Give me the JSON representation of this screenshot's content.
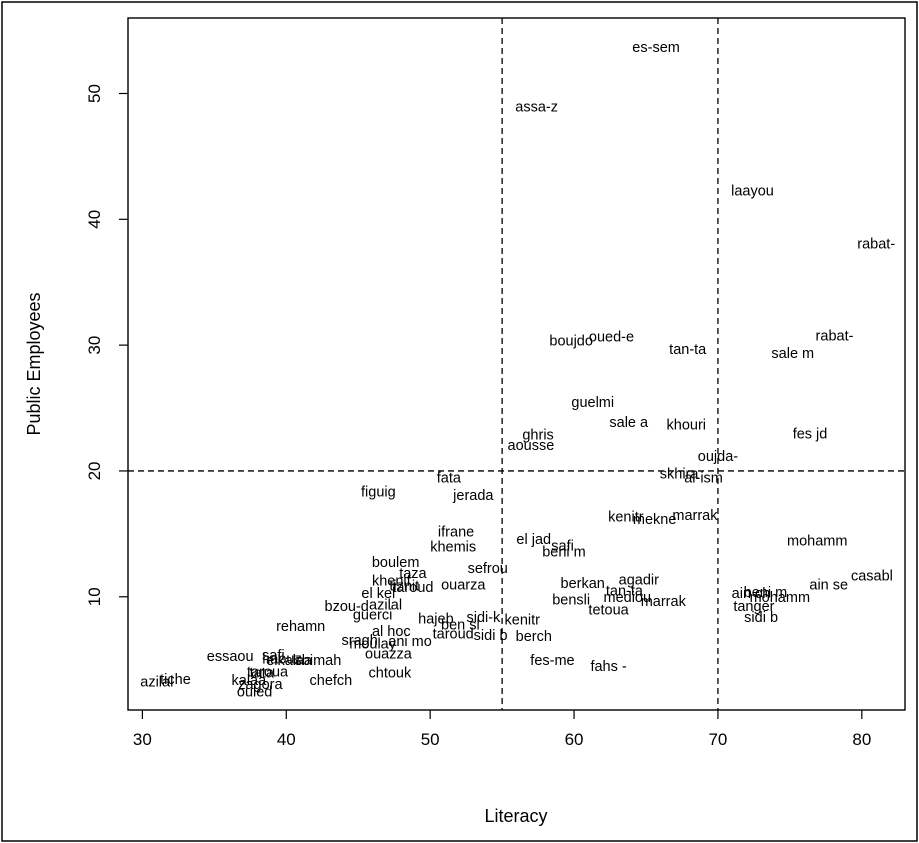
{
  "chart_data": {
    "type": "scatter",
    "marker": "text-labels",
    "xlabel": "Literacy",
    "ylabel": "Public Employees",
    "xlim": [
      29,
      83
    ],
    "ylim": [
      1,
      56
    ],
    "xticks": [
      30,
      40,
      50,
      60,
      70,
      80
    ],
    "yticks": [
      10,
      20,
      30,
      40,
      50
    ],
    "grid": false,
    "reference_lines": {
      "vertical": [
        55,
        70
      ],
      "horizontal": [
        20
      ],
      "style": "dashed"
    },
    "points": [
      {
        "label": "es-sem",
        "x": 65.7,
        "y": 53.6
      },
      {
        "label": "assa-z",
        "x": 57.4,
        "y": 48.9
      },
      {
        "label": "laayou",
        "x": 72.4,
        "y": 42.2
      },
      {
        "label": "rabat-",
        "x": 81.0,
        "y": 38.0
      },
      {
        "label": "rabat-",
        "x": 78.1,
        "y": 30.7
      },
      {
        "label": "boujdo",
        "x": 59.8,
        "y": 30.3
      },
      {
        "label": "oued-e",
        "x": 62.6,
        "y": 30.6
      },
      {
        "label": "tan-ta",
        "x": 67.9,
        "y": 29.6
      },
      {
        "label": "sale m",
        "x": 75.2,
        "y": 29.3
      },
      {
        "label": "guelmi",
        "x": 61.3,
        "y": 25.4
      },
      {
        "label": "sale a",
        "x": 63.8,
        "y": 23.8
      },
      {
        "label": "khouri",
        "x": 67.8,
        "y": 23.6
      },
      {
        "label": "fes jd",
        "x": 76.4,
        "y": 22.9
      },
      {
        "label": "ghris",
        "x": 57.5,
        "y": 22.8
      },
      {
        "label": "aousse",
        "x": 57.0,
        "y": 22.0
      },
      {
        "label": "oujda-",
        "x": 70.0,
        "y": 21.1
      },
      {
        "label": "skhira",
        "x": 67.3,
        "y": 19.7
      },
      {
        "label": "al-ism",
        "x": 69.0,
        "y": 19.4
      },
      {
        "label": "fata",
        "x": 51.3,
        "y": 19.4
      },
      {
        "label": "figuig",
        "x": 46.4,
        "y": 18.3
      },
      {
        "label": "jerada",
        "x": 53.0,
        "y": 18.0
      },
      {
        "label": "kenitr",
        "x": 63.6,
        "y": 16.3
      },
      {
        "label": "mekne",
        "x": 65.6,
        "y": 16.1
      },
      {
        "label": "marrak",
        "x": 68.4,
        "y": 16.4
      },
      {
        "label": "mohamm",
        "x": 76.9,
        "y": 14.4
      },
      {
        "label": "ifrane",
        "x": 51.8,
        "y": 15.1
      },
      {
        "label": "el jad",
        "x": 57.2,
        "y": 14.5
      },
      {
        "label": "khemis",
        "x": 51.6,
        "y": 13.9
      },
      {
        "label": "safi",
        "x": 59.2,
        "y": 14.0
      },
      {
        "label": "beni m",
        "x": 59.3,
        "y": 13.5
      },
      {
        "label": "boulem",
        "x": 47.6,
        "y": 12.7
      },
      {
        "label": "sefrou",
        "x": 54.0,
        "y": 12.2
      },
      {
        "label": "taza",
        "x": 48.8,
        "y": 11.8
      },
      {
        "label": "casabl",
        "x": 80.7,
        "y": 11.6
      },
      {
        "label": "khenif",
        "x": 47.3,
        "y": 11.2
      },
      {
        "label": "ouarza",
        "x": 52.3,
        "y": 10.9
      },
      {
        "label": "berkan",
        "x": 60.6,
        "y": 11.0
      },
      {
        "label": "agadir",
        "x": 64.5,
        "y": 11.3
      },
      {
        "label": "ain se",
        "x": 77.7,
        "y": 10.9
      },
      {
        "label": "tiznit",
        "x": 48.2,
        "y": 10.8
      },
      {
        "label": "taroud",
        "x": 48.8,
        "y": 10.7
      },
      {
        "label": "tan-ta",
        "x": 63.5,
        "y": 10.4
      },
      {
        "label": "beni m",
        "x": 73.3,
        "y": 10.3
      },
      {
        "label": "el kel",
        "x": 46.4,
        "y": 10.2
      },
      {
        "label": "ain ch",
        "x": 72.3,
        "y": 10.2
      },
      {
        "label": "bensli",
        "x": 59.8,
        "y": 9.7
      },
      {
        "label": "mediou",
        "x": 63.7,
        "y": 9.9
      },
      {
        "label": "marrak",
        "x": 66.2,
        "y": 9.6
      },
      {
        "label": "mohamm",
        "x": 74.3,
        "y": 9.9
      },
      {
        "label": "bzou-d",
        "x": 44.2,
        "y": 9.2
      },
      {
        "label": "azilal",
        "x": 46.9,
        "y": 9.3
      },
      {
        "label": "tetoua",
        "x": 62.4,
        "y": 8.9
      },
      {
        "label": "tanger",
        "x": 72.5,
        "y": 9.2
      },
      {
        "label": "guerci",
        "x": 46.0,
        "y": 8.5
      },
      {
        "label": "sidi b",
        "x": 73.0,
        "y": 8.3
      },
      {
        "label": "hajeb",
        "x": 50.4,
        "y": 8.2
      },
      {
        "label": "sidi-k",
        "x": 53.7,
        "y": 8.3
      },
      {
        "label": "kenitr",
        "x": 56.4,
        "y": 8.1
      },
      {
        "label": "rehamn",
        "x": 41.0,
        "y": 7.6
      },
      {
        "label": "ben sl",
        "x": 52.1,
        "y": 7.7
      },
      {
        "label": "al hoc",
        "x": 47.3,
        "y": 7.2
      },
      {
        "label": "taroud",
        "x": 51.6,
        "y": 7.0
      },
      {
        "label": "sidi b",
        "x": 54.2,
        "y": 6.9
      },
      {
        "label": "berch",
        "x": 57.2,
        "y": 6.8
      },
      {
        "label": "sragh",
        "x": 45.1,
        "y": 6.5
      },
      {
        "label": "moulay",
        "x": 46.0,
        "y": 6.2
      },
      {
        "label": "ani mo",
        "x": 48.6,
        "y": 6.4
      },
      {
        "label": "ouazza",
        "x": 47.1,
        "y": 5.4
      },
      {
        "label": "essaou",
        "x": 36.1,
        "y": 5.2
      },
      {
        "label": "safi",
        "x": 39.1,
        "y": 5.3
      },
      {
        "label": "haouz",
        "x": 39.7,
        "y": 5.0
      },
      {
        "label": "elkalaa",
        "x": 40.2,
        "y": 4.9
      },
      {
        "label": "sbimah",
        "x": 42.2,
        "y": 4.9
      },
      {
        "label": "fes-me",
        "x": 58.5,
        "y": 4.9
      },
      {
        "label": "fahs -",
        "x": 62.4,
        "y": 4.4
      },
      {
        "label": "chtouk",
        "x": 47.2,
        "y": 3.9
      },
      {
        "label": "taroua",
        "x": 38.7,
        "y": 4.0
      },
      {
        "label": "tata",
        "x": 38.3,
        "y": 3.9
      },
      {
        "label": "chefch",
        "x": 43.1,
        "y": 3.3
      },
      {
        "label": "azilal",
        "x": 31.0,
        "y": 3.2
      },
      {
        "label": "tiche",
        "x": 32.3,
        "y": 3.4
      },
      {
        "label": "kalaa",
        "x": 37.4,
        "y": 3.3
      },
      {
        "label": "zagora",
        "x": 38.2,
        "y": 3.0
      },
      {
        "label": "ouled",
        "x": 37.8,
        "y": 2.4
      }
    ]
  }
}
